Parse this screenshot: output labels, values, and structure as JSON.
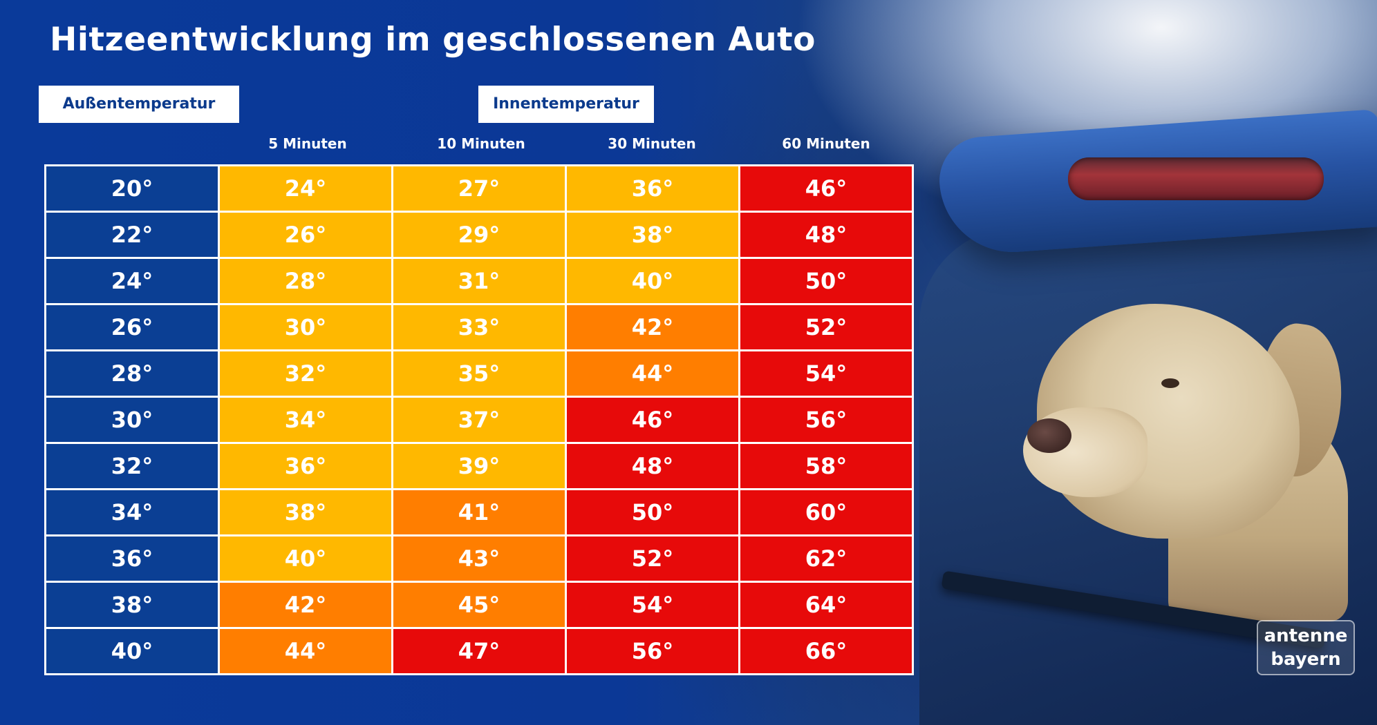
{
  "title": "Hitzeentwicklung im geschlossenen Auto",
  "labels": {
    "outside": "Außentemperatur",
    "inside": "Innentemperatur"
  },
  "colors": {
    "outside_cell": "#0b3f94",
    "level_yellow": "#ffb800",
    "level_orange": "#ff7e00",
    "level_red": "#e70a0a"
  },
  "chart_data": {
    "type": "table",
    "title": "Hitzeentwicklung im geschlossenen Auto",
    "columns": [
      "Außentemperatur",
      "5 Minuten",
      "10 Minuten",
      "30 Minuten",
      "60 Minuten"
    ],
    "rows": [
      {
        "outside": "20°",
        "values": [
          "24°",
          "27°",
          "36°",
          "46°"
        ],
        "levels": [
          "yellow",
          "yellow",
          "yellow",
          "red"
        ]
      },
      {
        "outside": "22°",
        "values": [
          "26°",
          "29°",
          "38°",
          "48°"
        ],
        "levels": [
          "yellow",
          "yellow",
          "yellow",
          "red"
        ]
      },
      {
        "outside": "24°",
        "values": [
          "28°",
          "31°",
          "40°",
          "50°"
        ],
        "levels": [
          "yellow",
          "yellow",
          "yellow",
          "red"
        ]
      },
      {
        "outside": "26°",
        "values": [
          "30°",
          "33°",
          "42°",
          "52°"
        ],
        "levels": [
          "yellow",
          "yellow",
          "orange",
          "red"
        ]
      },
      {
        "outside": "28°",
        "values": [
          "32°",
          "35°",
          "44°",
          "54°"
        ],
        "levels": [
          "yellow",
          "yellow",
          "orange",
          "red"
        ]
      },
      {
        "outside": "30°",
        "values": [
          "34°",
          "37°",
          "46°",
          "56°"
        ],
        "levels": [
          "yellow",
          "yellow",
          "red",
          "red"
        ]
      },
      {
        "outside": "32°",
        "values": [
          "36°",
          "39°",
          "48°",
          "58°"
        ],
        "levels": [
          "yellow",
          "yellow",
          "red",
          "red"
        ]
      },
      {
        "outside": "34°",
        "values": [
          "38°",
          "41°",
          "50°",
          "60°"
        ],
        "levels": [
          "yellow",
          "orange",
          "red",
          "red"
        ]
      },
      {
        "outside": "36°",
        "values": [
          "40°",
          "43°",
          "52°",
          "62°"
        ],
        "levels": [
          "yellow",
          "orange",
          "red",
          "red"
        ]
      },
      {
        "outside": "38°",
        "values": [
          "42°",
          "45°",
          "54°",
          "64°"
        ],
        "levels": [
          "orange",
          "orange",
          "red",
          "red"
        ]
      },
      {
        "outside": "40°",
        "values": [
          "44°",
          "47°",
          "56°",
          "66°"
        ],
        "levels": [
          "orange",
          "red",
          "red",
          "red"
        ]
      }
    ]
  },
  "logo": {
    "line1": "antenne",
    "line2": "bayern"
  }
}
